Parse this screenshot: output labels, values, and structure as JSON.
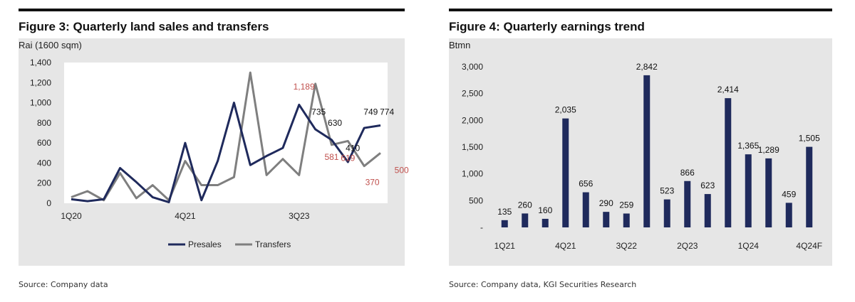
{
  "colors": {
    "presales": "#1f2a5c",
    "transfers": "#7f7f7f",
    "bar": "#1f2a5c",
    "red_label": "#c0504d",
    "panel_bg": "#e6e6e6"
  },
  "chart_data": [
    {
      "type": "line",
      "title": "Figure 3: Quarterly land sales and transfers",
      "ylabel": "Rai (1600 sqm)",
      "ylim": [
        0,
        1400
      ],
      "yticks": [
        "0",
        "200",
        "400",
        "600",
        "800",
        "1,000",
        "1,200",
        "1,400"
      ],
      "ytick_values": [
        0,
        200,
        400,
        600,
        800,
        1000,
        1200,
        1400
      ],
      "xtick_labels": [
        {
          "index": 0,
          "label": "1Q20"
        },
        {
          "index": 7,
          "label": "4Q21"
        },
        {
          "index": 14,
          "label": "3Q23"
        }
      ],
      "series": [
        {
          "name": "Presales",
          "values": [
            40,
            20,
            40,
            350,
            210,
            60,
            10,
            600,
            30,
            420,
            1000,
            380,
            470,
            550,
            980,
            735,
            630,
            410,
            749,
            774
          ]
        },
        {
          "name": "Transfers",
          "values": [
            60,
            120,
            30,
            300,
            50,
            180,
            30,
            420,
            180,
            180,
            260,
            1300,
            280,
            440,
            280,
            1189,
            581,
            619,
            370,
            500
          ]
        }
      ],
      "annotations": [
        {
          "text": "1,189",
          "x": 14.3,
          "y": 1130,
          "color": "red"
        },
        {
          "text": "735",
          "x": 15.2,
          "y": 880,
          "color": "dark"
        },
        {
          "text": "630",
          "x": 16.2,
          "y": 770,
          "color": "dark"
        },
        {
          "text": "749",
          "x": 18.4,
          "y": 880,
          "color": "dark"
        },
        {
          "text": "774",
          "x": 19.4,
          "y": 880,
          "color": "dark"
        },
        {
          "text": "410",
          "x": 17.3,
          "y": 520,
          "color": "dark"
        },
        {
          "text": "581",
          "x": 16.0,
          "y": 430,
          "color": "red"
        },
        {
          "text": "619",
          "x": 17.0,
          "y": 420,
          "color": "red"
        },
        {
          "text": "370",
          "x": 18.5,
          "y": 180,
          "color": "red"
        },
        {
          "text": "500",
          "x": 20.3,
          "y": 300,
          "color": "red"
        }
      ],
      "legend": [
        "Presales",
        "Transfers"
      ],
      "source": "Source: Company data"
    },
    {
      "type": "bar",
      "title": "Figure 4: Quarterly earnings trend",
      "ylabel": "Btmn",
      "ylim": [
        0,
        3000
      ],
      "yticks": [
        "-",
        "500",
        "1,000",
        "1,500",
        "2,000",
        "2,500",
        "3,000"
      ],
      "ytick_values": [
        0,
        500,
        1000,
        1500,
        2000,
        2500,
        3000
      ],
      "values": [
        135,
        260,
        160,
        2035,
        656,
        290,
        259,
        2842,
        523,
        866,
        623,
        2414,
        1365,
        1289,
        459,
        1505
      ],
      "data_labels": [
        "135",
        "260",
        "160",
        "2,035",
        "656",
        "290",
        "259",
        "2,842",
        "523",
        "866",
        "623",
        "2,414",
        "1,365",
        "1,289",
        "459",
        "1,505"
      ],
      "xtick_labels": [
        {
          "index": 0,
          "label": "1Q21"
        },
        {
          "index": 3,
          "label": "4Q21"
        },
        {
          "index": 6,
          "label": "3Q22"
        },
        {
          "index": 9,
          "label": "2Q23"
        },
        {
          "index": 12,
          "label": "1Q24"
        },
        {
          "index": 15,
          "label": "4Q24F"
        }
      ],
      "source": "Source: Company data, KGI Securities Research"
    }
  ]
}
